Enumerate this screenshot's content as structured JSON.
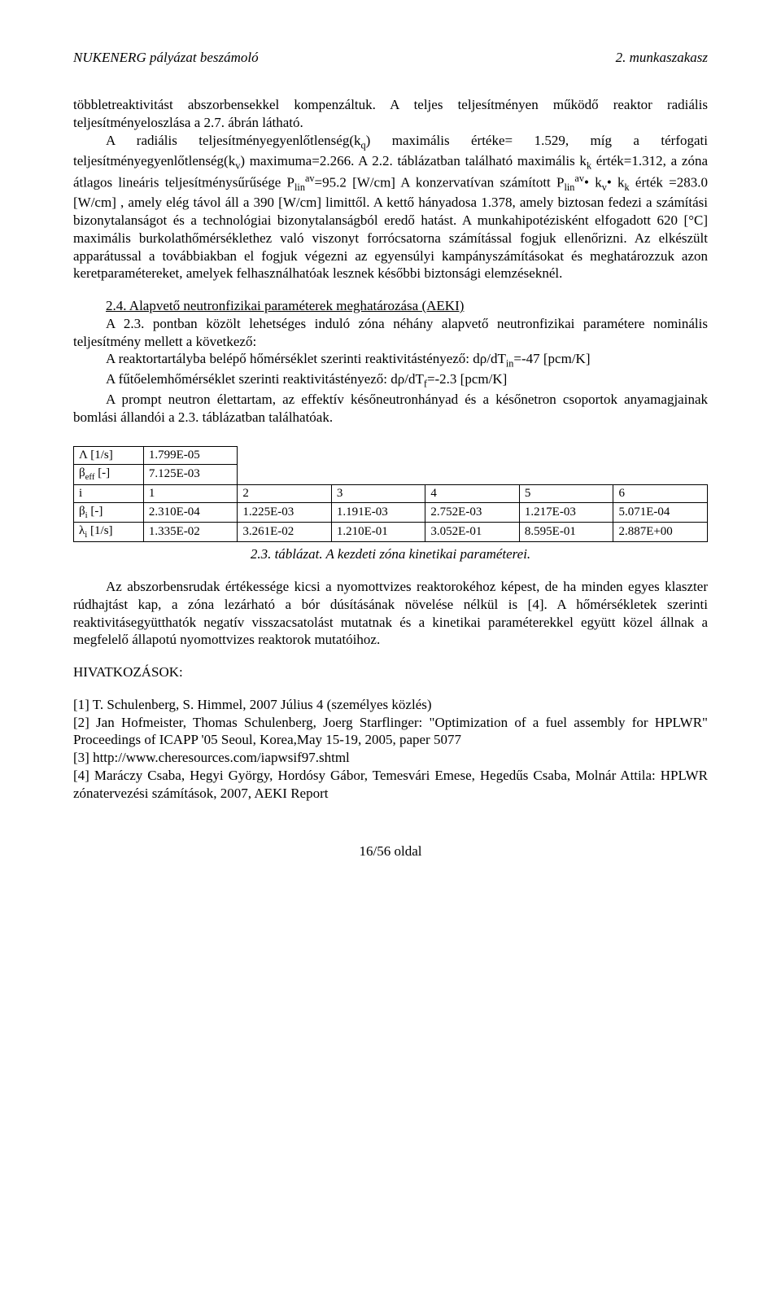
{
  "header": {
    "left": "NUKENERG pályázat beszámoló",
    "right": "2. munkaszakasz"
  },
  "para1": "többletreaktivitást abszorbensekkel kompenzáltuk. A teljes teljesítményen működő reaktor radiális teljesítményeloszlása a 2.7. ábrán látható.",
  "para2_a": "A radiális teljesítményegyenlőtlenség(k",
  "para2_b": ") maximális értéke= 1.529, míg a térfogati teljesítményegyenlőtlenség(k",
  "para2_c": ") maximuma=2.266. A 2.2. táblázatban található maximális k",
  "para2_d": " érték=1.312, a zóna átlagos lineáris teljesítménysűrűsége P",
  "para2_e": "=95.2 [W/cm] A konzervatívan számított P",
  "para2_f": "• k",
  "para2_g": "• k",
  "para2_h": " érték =283.0 [W/cm] , amely elég távol áll a 390 [W/cm] limittől. A kettő hányadosa 1.378, amely biztosan fedezi a számítási bizonytalanságot és a technológiai bizonytalanságból eredő hatást. A munkahipotézisként elfogadott 620 [°C] maximális burkolathőmérséklethez való viszonyt forrócsatorna számítással fogjuk ellenőrizni. Az elkészült apparátussal a továbbiakban el fogjuk végezni az egyensúlyi kampányszámításokat és meghatározzuk azon keretparamétereket, amelyek felhasználhatóak lesznek későbbi biztonsági elemzéseknél.",
  "section24_title": "2.4. Alapvető neutronfizikai paraméterek meghatározása (AEKI)",
  "para3": "A 2.3. pontban közölt lehetséges induló zóna néhány alapvető neutronfizikai paramétere nominális teljesítmény mellett a következő:",
  "para4_a": "A reaktortartályba belépő hőmérséklet szerinti reaktivitástényező: dρ/dT",
  "para4_b": "=-47 [pcm/K]",
  "para5_a": "A fűtőelemhőmérséklet szerinti reaktivitástényező: dρ/dT",
  "para5_b": "=-2.3 [pcm/K]",
  "para6": "A prompt neutron élettartam, az effektív későneutronhányad és a későnetron csoportok anyamagjainak bomlási állandói a 2.3. táblázatban találhatóak.",
  "table": {
    "rows": [
      {
        "label_html": "Λ [1/s]",
        "cells": [
          "1.799E-05",
          "",
          "",
          "",
          "",
          ""
        ]
      },
      {
        "label_html": "β<sub>eff</sub> [-]",
        "cells": [
          "7.125E-03",
          "",
          "",
          "",
          "",
          ""
        ]
      },
      {
        "label_html": "i",
        "cells": [
          "1",
          "2",
          "3",
          "4",
          "5",
          "6"
        ]
      },
      {
        "label_html": "β<sub>i</sub> [-]",
        "cells": [
          "2.310E-04",
          "1.225E-03",
          "1.191E-03",
          "2.752E-03",
          "1.217E-03",
          "5.071E-04"
        ]
      },
      {
        "label_html": "λ<sub>i</sub> [1/s]",
        "cells": [
          "1.335E-02",
          "3.261E-02",
          "1.210E-01",
          "3.052E-01",
          "8.595E-01",
          "2.887E+00"
        ]
      }
    ],
    "caption": "2.3. táblázat. A kezdeti zóna kinetikai paraméterei."
  },
  "para7": "Az abszorbensrudak értékessége kicsi a nyomottvizes reaktorokéhoz képest, de ha minden egyes klaszter rúdhajtást kap, a zóna lezárható a bór dúsításának növelése nélkül is [4]. A hőmérsékletek szerinti reaktivitásegyütthatók negatív visszacsatolást mutatnak és a kinetikai paraméterekkel együtt közel állnak a megfelelő állapotú nyomottvizes reaktorok mutatóihoz.",
  "refs_title": "HIVATKOZÁSOK:",
  "refs": {
    "r1": "[1] T. Schulenberg, S. Himmel, 2007 Július 4 (személyes közlés)",
    "r2": "[2] Jan Hofmeister, Thomas Schulenberg, Joerg Starflinger: \"Optimization of a fuel assembly for HPLWR\" Proceedings of ICAPP '05 Seoul, Korea,May 15-19, 2005, paper 5077",
    "r3": "[3] http://www.cheresources.com/iapwsif97.shtml",
    "r4": "[4] Maráczy Csaba, Hegyi György, Hordósy Gábor, Temesvári Emese, Hegedűs Csaba, Molnár Attila: HPLWR zónatervezési számítások, 2007, AEKI Report"
  },
  "footer": "16/56 oldal"
}
